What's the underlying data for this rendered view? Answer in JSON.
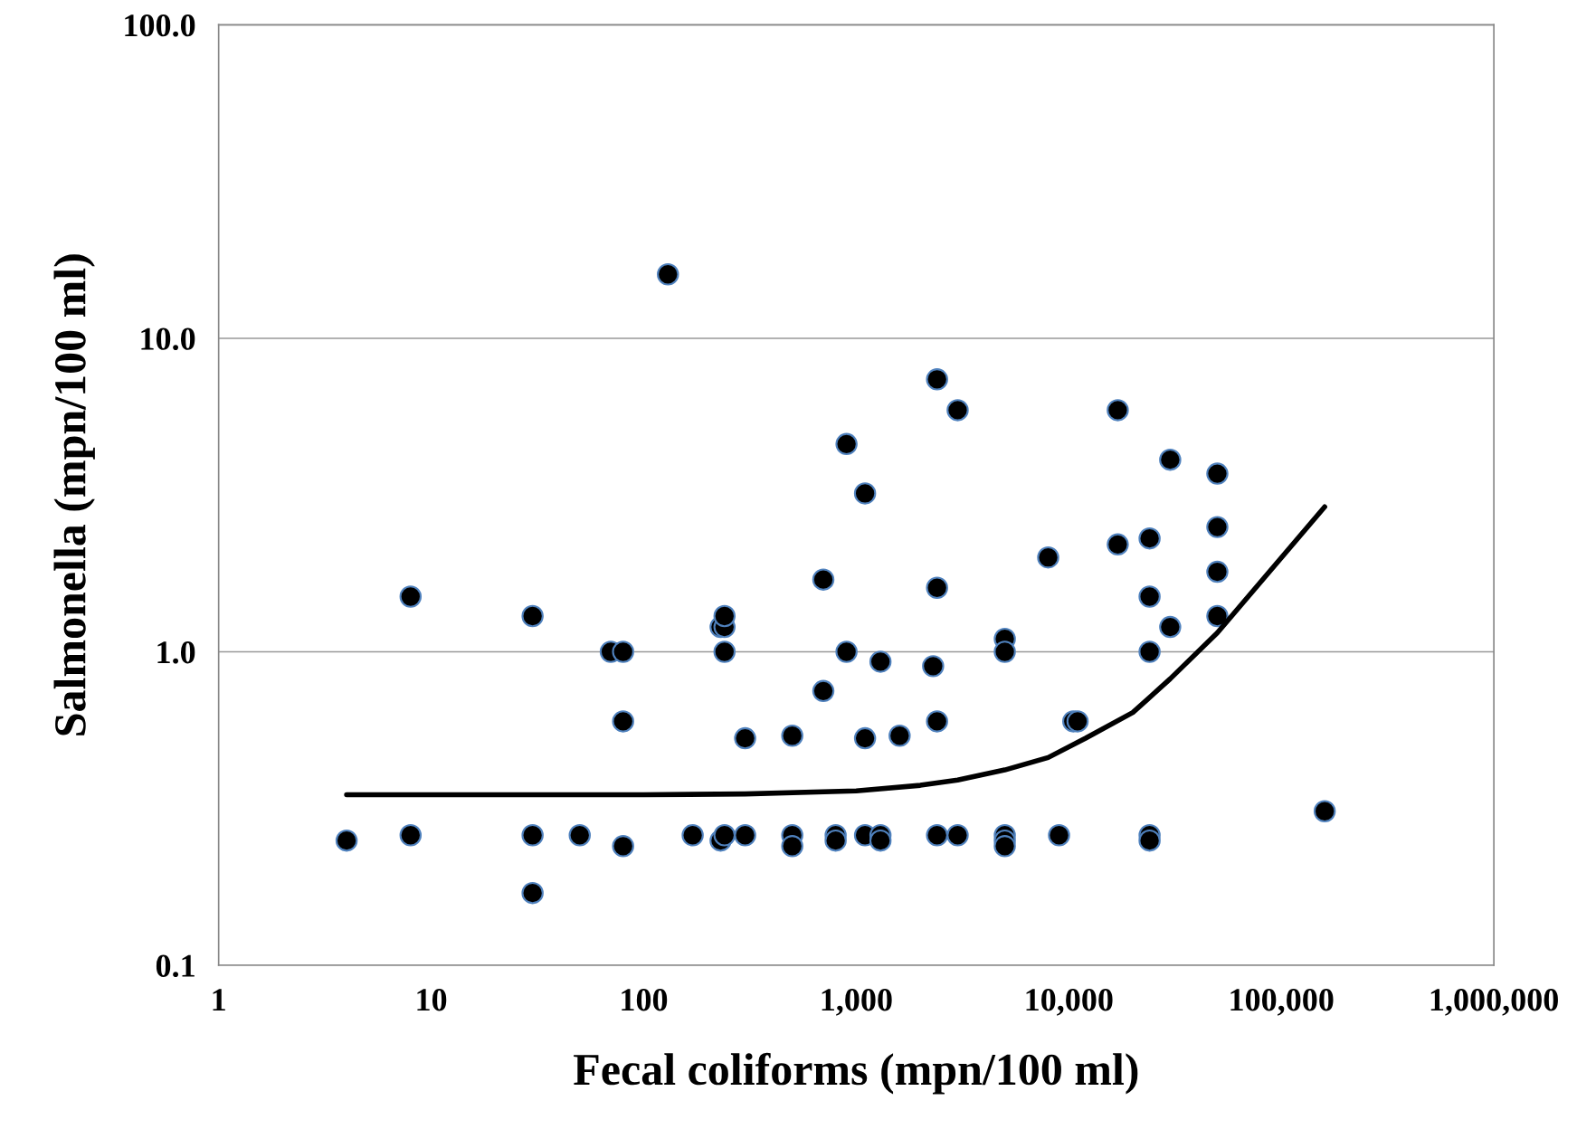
{
  "chart_data": {
    "type": "scatter",
    "xlabel": "Fecal coliforms (mpn/100 ml)",
    "ylabel": "Salmonella (mpn/100 ml)",
    "log": "xy",
    "grid": "y",
    "marker": "circle",
    "xlim": [
      1,
      1000000
    ],
    "ylim": [
      0.1,
      100
    ],
    "xticks": [
      1,
      10,
      100,
      {
        "value": 1000,
        "label": "1,000"
      },
      {
        "value": 10000,
        "label": "10,000"
      },
      {
        "value": 100000,
        "label": "100,000"
      },
      {
        "value": 1000000,
        "label": "1,000,000"
      }
    ],
    "yticks": [
      {
        "value": 0.1,
        "label": "0.1"
      },
      {
        "value": 1,
        "label": "1.0"
      },
      {
        "value": 10,
        "label": "10.0"
      },
      {
        "value": 100,
        "label": "100.0"
      }
    ],
    "series": [
      {
        "color": "#000000",
        "x": [
          4,
          8,
          8,
          30,
          30,
          30,
          50,
          70,
          80,
          80,
          80,
          130,
          170,
          230,
          240,
          240,
          240,
          230,
          240,
          300,
          300,
          500,
          500,
          500,
          700,
          700,
          800,
          800,
          900,
          900,
          1100,
          1100,
          1100,
          1300,
          1300,
          1300,
          1600,
          2300,
          2400,
          2400,
          2400,
          2400,
          3000,
          3000,
          5000,
          5000,
          5000,
          5000,
          5000,
          8000,
          9000,
          10500,
          11000,
          17000,
          17000,
          24000,
          24000,
          24000,
          24000,
          24000,
          30000,
          30000,
          50000,
          50000,
          50000,
          50000,
          160000
        ],
        "values": [
          0.25,
          1.5,
          0.26,
          1.3,
          0.26,
          0.17,
          0.26,
          1.0,
          1.0,
          0.6,
          0.24,
          16,
          0.26,
          1.2,
          1.2,
          1.3,
          1.0,
          0.25,
          0.26,
          0.53,
          0.26,
          0.54,
          0.26,
          0.24,
          1.7,
          0.75,
          0.26,
          0.25,
          4.6,
          1.0,
          3.2,
          0.53,
          0.26,
          0.93,
          0.26,
          0.25,
          0.54,
          0.9,
          7.4,
          1.6,
          0.6,
          0.26,
          5.9,
          0.26,
          1.1,
          1.0,
          0.26,
          0.25,
          0.24,
          2.0,
          0.26,
          0.6,
          0.6,
          5.9,
          2.2,
          2.3,
          1.5,
          1.0,
          0.26,
          0.25,
          4.1,
          1.2,
          3.7,
          2.5,
          1.8,
          1.3,
          0.31
        ]
      },
      {
        "type": "line",
        "color": "#000000",
        "marker": "none",
        "line_style": "solid",
        "x": [
          4,
          10,
          100,
          300,
          1000,
          2000,
          3000,
          5000,
          8000,
          12000,
          20000,
          30000,
          50000,
          160000
        ],
        "values": [
          0.35,
          0.35,
          0.35,
          0.352,
          0.36,
          0.375,
          0.39,
          0.42,
          0.46,
          0.53,
          0.64,
          0.82,
          1.15,
          2.9
        ]
      }
    ]
  }
}
